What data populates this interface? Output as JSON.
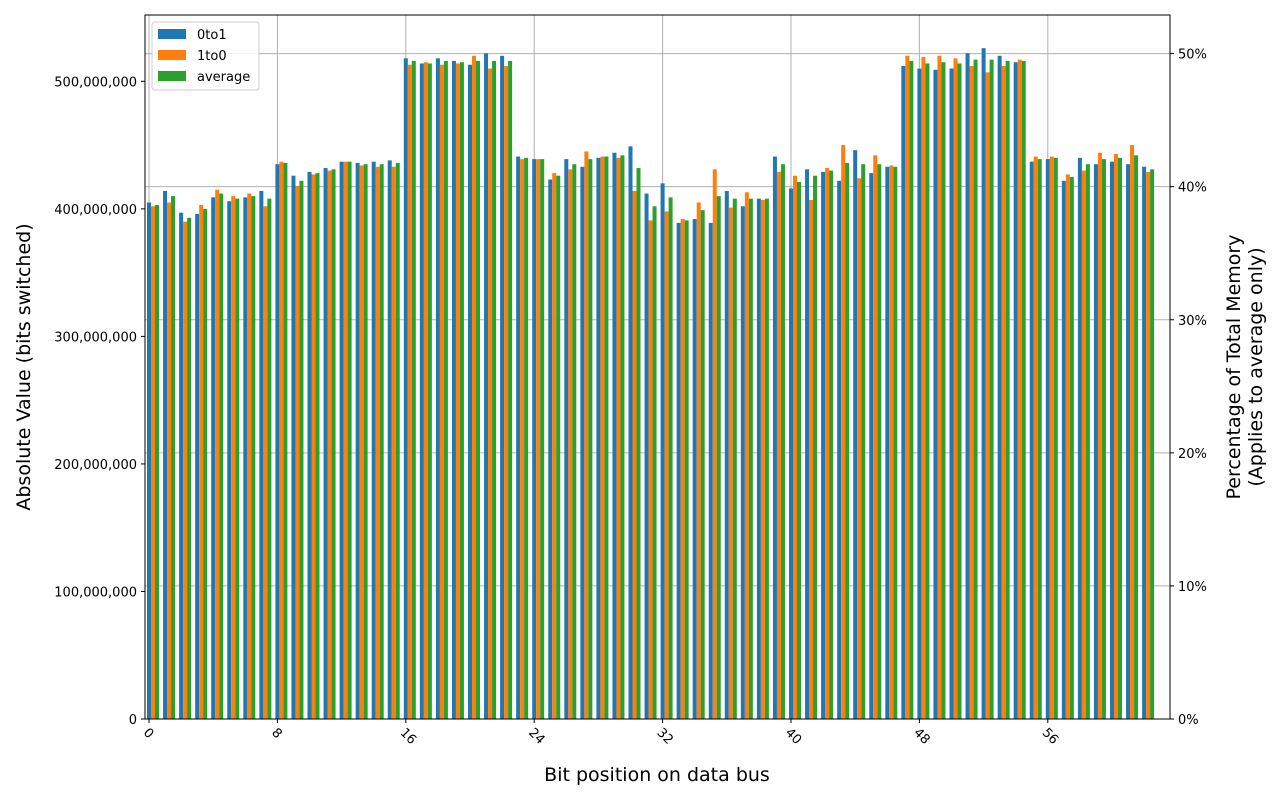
{
  "chart_data": {
    "type": "bar",
    "xlabel": "Bit position on data bus",
    "ylabel": "Absolute Value (bits switched)",
    "ylabel_right": [
      "Percentage of Total Memory",
      "(Applies to average only)"
    ],
    "ylim": [
      0,
      552000000
    ],
    "ylim_right_percent": [
      0,
      52.9
    ],
    "grid": true,
    "legend_position": "top-left",
    "x_ticks": [
      {
        "bit": 0,
        "label": "0"
      },
      {
        "bit": 8,
        "label": "8"
      },
      {
        "bit": 16,
        "label": "16"
      },
      {
        "bit": 24,
        "label": "24"
      },
      {
        "bit": 32,
        "label": "32"
      },
      {
        "bit": 40,
        "label": "40"
      },
      {
        "bit": 48,
        "label": "48"
      },
      {
        "bit": 56,
        "label": "56"
      }
    ],
    "y_ticks": [
      {
        "value": 0,
        "label": "0"
      },
      {
        "value": 100000000,
        "label": "100,000,000"
      },
      {
        "value": 200000000,
        "label": "200,000,000"
      },
      {
        "value": 300000000,
        "label": "300,000,000"
      },
      {
        "value": 400000000,
        "label": "400,000,000"
      },
      {
        "value": 500000000,
        "label": "500,000,000"
      }
    ],
    "y_ticks_right": [
      {
        "value": 0,
        "label": "0%"
      },
      {
        "value": 10,
        "label": "10%"
      },
      {
        "value": 20,
        "label": "20%"
      },
      {
        "value": 30,
        "label": "30%"
      },
      {
        "value": 40,
        "label": "40%"
      },
      {
        "value": 50,
        "label": "50%"
      }
    ],
    "series": [
      {
        "name": "0to1",
        "color": "#1f77b4",
        "values": [
          405000000,
          414000000,
          397000000,
          396000000,
          409000000,
          406000000,
          409000000,
          414000000,
          435000000,
          426000000,
          429000000,
          432000000,
          437000000,
          436000000,
          437000000,
          438000000,
          518000000,
          514000000,
          518000000,
          516000000,
          513000000,
          522000000,
          520000000,
          441000000,
          439000000,
          423000000,
          439000000,
          433000000,
          440000000,
          444000000,
          449000000,
          412000000,
          420000000,
          389000000,
          392000000,
          389000000,
          414000000,
          402000000,
          408000000,
          441000000,
          416000000,
          431000000,
          429000000,
          422000000,
          446000000,
          428000000,
          433000000,
          512000000,
          510000000,
          509000000,
          510000000,
          522000000,
          526000000,
          520000000,
          515000000,
          437000000,
          439000000,
          422000000,
          440000000,
          435000000,
          437000000,
          435000000,
          433000000
        ]
      },
      {
        "name": "1to0",
        "color": "#ff7f0e",
        "values": [
          402000000,
          405000000,
          390000000,
          403000000,
          415000000,
          410000000,
          412000000,
          402000000,
          437000000,
          418000000,
          427000000,
          430000000,
          437000000,
          434000000,
          433000000,
          433000000,
          513000000,
          515000000,
          513000000,
          514000000,
          520000000,
          510000000,
          512000000,
          439000000,
          439000000,
          428000000,
          431000000,
          445000000,
          441000000,
          440000000,
          414000000,
          391000000,
          398000000,
          392000000,
          405000000,
          431000000,
          401000000,
          413000000,
          407000000,
          429000000,
          426000000,
          407000000,
          432000000,
          450000000,
          424000000,
          442000000,
          434000000,
          520000000,
          519000000,
          520000000,
          518000000,
          512000000,
          507000000,
          512000000,
          517000000,
          441000000,
          441000000,
          427000000,
          430000000,
          444000000,
          443000000,
          450000000,
          429000000
        ]
      },
      {
        "name": "average",
        "color": "#2ca02c",
        "values": [
          403000000,
          410000000,
          393000000,
          400000000,
          412000000,
          408000000,
          410000000,
          408000000,
          436000000,
          422000000,
          428000000,
          431000000,
          437000000,
          435000000,
          435000000,
          436000000,
          516000000,
          514000000,
          516000000,
          515000000,
          516000000,
          516000000,
          516000000,
          440000000,
          439000000,
          426000000,
          435000000,
          439000000,
          441000000,
          442000000,
          432000000,
          402000000,
          409000000,
          391000000,
          399000000,
          410000000,
          408000000,
          408000000,
          408000000,
          435000000,
          421000000,
          426000000,
          430000000,
          436000000,
          435000000,
          435000000,
          433000000,
          516000000,
          514000000,
          515000000,
          514000000,
          517000000,
          517000000,
          516000000,
          516000000,
          439000000,
          440000000,
          425000000,
          435000000,
          439000000,
          440000000,
          442000000,
          431000000
        ]
      }
    ]
  }
}
